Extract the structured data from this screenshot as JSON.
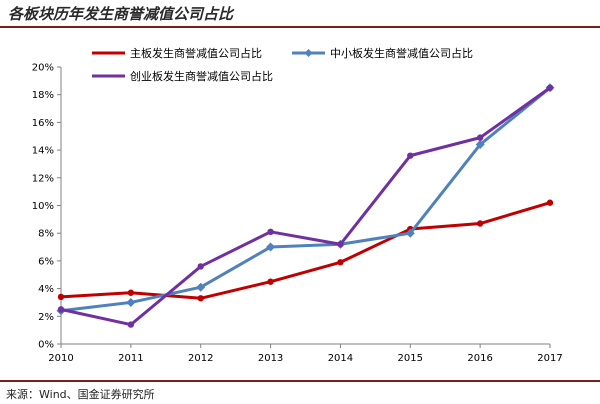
{
  "header": {
    "title": "各板块历年发生商誉减值公司占比"
  },
  "footer": {
    "source": "来源：Wind、国金证券研究所"
  },
  "chart_data": {
    "type": "line",
    "title": "各板块历年发生商誉减值公司占比",
    "x": [
      "2010",
      "2011",
      "2012",
      "2013",
      "2014",
      "2015",
      "2016",
      "2017"
    ],
    "yticks": [
      "0%",
      "2%",
      "4%",
      "6%",
      "8%",
      "10%",
      "12%",
      "14%",
      "16%",
      "18%",
      "20%"
    ],
    "ylim": [
      0,
      20
    ],
    "ylabel": "",
    "xlabel": "",
    "grid": false,
    "legend_position": "top-left",
    "series": [
      {
        "name": "主板发生商誉减值公司占比",
        "color": "#c00000",
        "marker": "none",
        "values": [
          3.4,
          3.7,
          3.3,
          4.5,
          5.9,
          8.3,
          8.7,
          10.2
        ]
      },
      {
        "name": "中小板发生商誉减值公司占比",
        "color": "#4f81bd",
        "marker": "diamond",
        "values": [
          2.4,
          3.0,
          4.1,
          7.0,
          7.2,
          8.0,
          14.4,
          18.5
        ]
      },
      {
        "name": "创业板发生商誉减值公司占比",
        "color": "#7030a0",
        "marker": "none",
        "values": [
          2.5,
          1.4,
          5.6,
          8.1,
          7.2,
          13.6,
          14.9,
          18.5
        ]
      }
    ]
  }
}
